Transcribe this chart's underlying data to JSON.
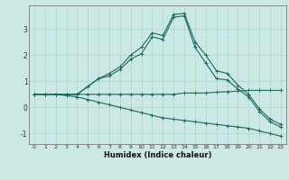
{
  "xlabel": "Humidex (Indice chaleur)",
  "xlim": [
    -0.5,
    23.5
  ],
  "ylim": [
    -1.4,
    3.9
  ],
  "xticks": [
    0,
    1,
    2,
    3,
    4,
    5,
    6,
    7,
    8,
    9,
    10,
    11,
    12,
    13,
    14,
    15,
    16,
    17,
    18,
    19,
    20,
    21,
    22,
    23
  ],
  "yticks": [
    -1,
    0,
    1,
    2,
    3
  ],
  "bg_color": "#cce8e4",
  "line_color": "#1a6b5e",
  "grid_color": "#aad4d0",
  "curves": {
    "main": {
      "x": [
        0,
        1,
        2,
        3,
        4,
        5,
        6,
        7,
        8,
        9,
        10,
        11,
        12,
        13,
        14,
        15,
        16,
        17,
        18,
        19,
        20,
        21,
        22,
        23
      ],
      "y": [
        0.5,
        0.5,
        0.5,
        0.5,
        0.5,
        0.8,
        1.1,
        1.2,
        1.45,
        1.85,
        2.05,
        2.7,
        2.6,
        3.45,
        3.5,
        2.3,
        1.7,
        1.1,
        1.05,
        0.7,
        0.4,
        -0.15,
        -0.55,
        -0.75
      ]
    },
    "upper": {
      "x": [
        0,
        1,
        2,
        3,
        4,
        5,
        6,
        7,
        8,
        9,
        10,
        11,
        12,
        13,
        14,
        15,
        16,
        17,
        18,
        19,
        20,
        21,
        22,
        23
      ],
      "y": [
        0.5,
        0.5,
        0.5,
        0.5,
        0.5,
        0.8,
        1.1,
        1.3,
        1.55,
        2.0,
        2.3,
        2.85,
        2.75,
        3.55,
        3.6,
        2.5,
        2.0,
        1.4,
        1.3,
        0.85,
        0.5,
        -0.05,
        -0.45,
        -0.65
      ]
    },
    "flat1": {
      "x": [
        0,
        1,
        2,
        3,
        4,
        5,
        6,
        7,
        8,
        9,
        10,
        11,
        12,
        13,
        14,
        15,
        16,
        17,
        18,
        19,
        20,
        21,
        22,
        23
      ],
      "y": [
        0.5,
        0.5,
        0.5,
        0.5,
        0.5,
        0.5,
        0.5,
        0.5,
        0.5,
        0.5,
        0.5,
        0.5,
        0.5,
        0.5,
        0.55,
        0.55,
        0.55,
        0.58,
        0.6,
        0.62,
        0.65,
        0.65,
        0.65,
        0.65
      ]
    },
    "declining": {
      "x": [
        0,
        1,
        2,
        3,
        4,
        5,
        6,
        7,
        8,
        9,
        10,
        11,
        12,
        13,
        14,
        15,
        16,
        17,
        18,
        19,
        20,
        21,
        22,
        23
      ],
      "y": [
        0.5,
        0.5,
        0.5,
        0.45,
        0.4,
        0.3,
        0.2,
        0.1,
        0.0,
        -0.1,
        -0.2,
        -0.3,
        -0.4,
        -0.45,
        -0.5,
        -0.55,
        -0.6,
        -0.65,
        -0.7,
        -0.75,
        -0.8,
        -0.9,
        -1.0,
        -1.1
      ]
    }
  }
}
